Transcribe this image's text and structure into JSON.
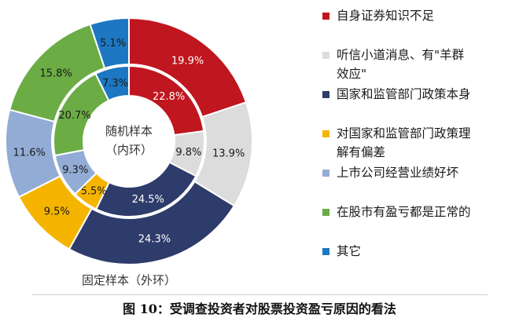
{
  "chart_data": {
    "type": "pie",
    "center_label": "随机样本\n（内环）",
    "outer_ring_label": "固定样本（外环）",
    "categories": [
      "自身证券知识不足",
      "听信小道消息、有\"羊群\n效应\"",
      "国家和监管部门政策本身",
      "对国家和监管部门政策理\n解有偏差",
      "上市公司经营业绩好坏",
      "在股市有盈亏都是正常的",
      "其它"
    ],
    "colors": [
      "#c0161f",
      "#dcdcdc",
      "#2e3c6b",
      "#f5b400",
      "#92acd6",
      "#6bac45",
      "#1d77c2"
    ],
    "series": [
      {
        "name": "固定样本（外环）",
        "values": [
          19.9,
          13.9,
          24.3,
          9.5,
          11.6,
          15.8,
          5.1
        ],
        "labels": [
          "19.9%",
          "13.9%",
          "24.3%",
          "9.5%",
          "11.6%",
          "15.8%",
          "5.1%"
        ]
      },
      {
        "name": "随机样本（内环）",
        "values": [
          22.8,
          9.8,
          24.5,
          5.5,
          9.3,
          20.7,
          7.3
        ],
        "labels": [
          "22.8%",
          "9.8%",
          "24.5%",
          "5.5%",
          "9.3%",
          "20.7%",
          "7.3%"
        ]
      }
    ],
    "legend_position": "right"
  },
  "caption": "图 10：受调查投资者对股票投资盈亏原因的看法"
}
